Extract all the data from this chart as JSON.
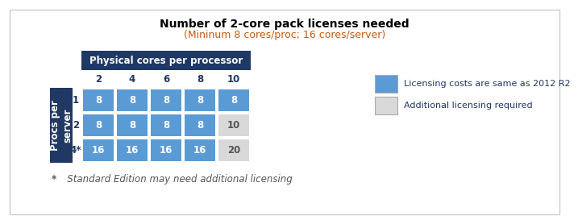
{
  "title": "Number of 2-core pack licenses needed",
  "subtitle": "(Mininum 8 cores/proc; 16 cores/server)",
  "col_header_text": "Physical cores per processor",
  "col_header_color": "#1F3864",
  "row_header_text": "Procs per\nserver",
  "row_header_color": "#1F3864",
  "col_labels": [
    "2",
    "4",
    "6",
    "8",
    "10"
  ],
  "row_labels": [
    "1",
    "2",
    "4*"
  ],
  "cell_values": [
    [
      "8",
      "8",
      "8",
      "8",
      "8"
    ],
    [
      "8",
      "8",
      "8",
      "8",
      "10"
    ],
    [
      "16",
      "16",
      "16",
      "16",
      "20"
    ]
  ],
  "cell_colors": [
    [
      "#5B9BD5",
      "#5B9BD5",
      "#5B9BD5",
      "#5B9BD5",
      "#5B9BD5"
    ],
    [
      "#5B9BD5",
      "#5B9BD5",
      "#5B9BD5",
      "#5B9BD5",
      "#D9D9D9"
    ],
    [
      "#5B9BD5",
      "#5B9BD5",
      "#5B9BD5",
      "#5B9BD5",
      "#D9D9D9"
    ]
  ],
  "cell_text_colors": [
    [
      "white",
      "white",
      "white",
      "white",
      "white"
    ],
    [
      "white",
      "white",
      "white",
      "white",
      "#555555"
    ],
    [
      "white",
      "white",
      "white",
      "white",
      "#555555"
    ]
  ],
  "footnote_star": "*",
  "footnote_text": "   Standard Edition may need additional licensing",
  "legend_items": [
    {
      "color": "#5B9BD5",
      "label": "Licensing costs are same as 2012 R2"
    },
    {
      "color": "#D9D9D9",
      "label": "Additional licensing required"
    }
  ],
  "background_color": "#FFFFFF",
  "border_color": "#CCCCCC",
  "title_fontsize": 10,
  "subtitle_fontsize": 9,
  "cell_fontsize": 8.5,
  "header_fontsize": 8.5,
  "legend_text_color": "#1F3864"
}
